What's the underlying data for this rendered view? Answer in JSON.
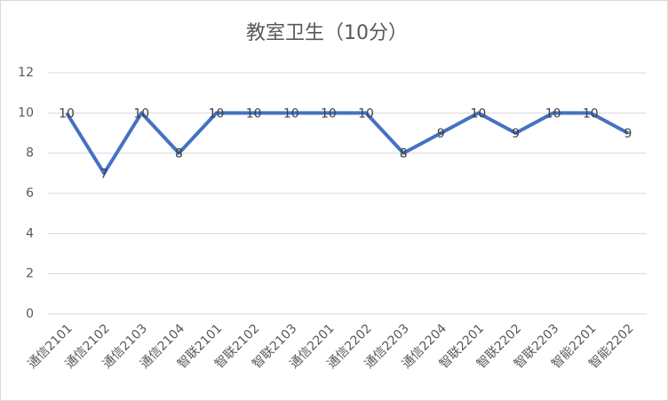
{
  "chart_data": {
    "type": "line",
    "title": "教室卫生（10分）",
    "categories": [
      "通信2101",
      "通信2102",
      "通信2103",
      "通信2104",
      "智联2101",
      "智联2102",
      "智联2103",
      "通信2201",
      "通信2202",
      "通信2203",
      "通信2204",
      "智联2201",
      "智联2202",
      "智联2203",
      "智能2201",
      "智能2202"
    ],
    "series": [
      {
        "name": "教室卫生",
        "color": "#4472c4",
        "values": [
          10,
          7,
          10,
          8,
          10,
          10,
          10,
          10,
          10,
          8,
          9,
          10,
          9,
          10,
          10,
          9
        ]
      }
    ],
    "ylim": [
      0,
      12
    ],
    "yticks": [
      0,
      2,
      4,
      6,
      8,
      10,
      12
    ],
    "grid": true
  }
}
